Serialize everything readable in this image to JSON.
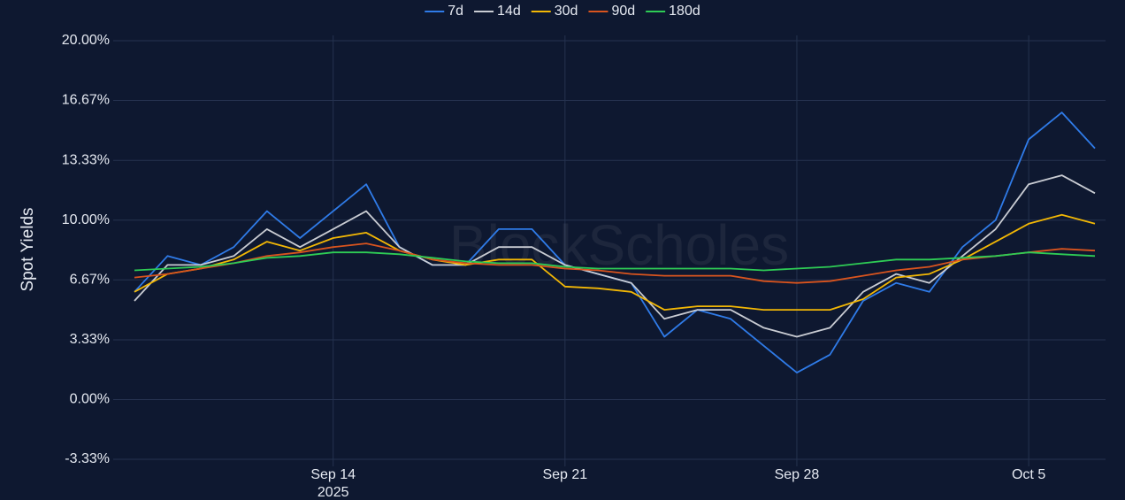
{
  "chart_data": {
    "type": "line",
    "y_label": "Spot Yields",
    "watermark": "BlockScholes",
    "x_year_label": "2025",
    "x": [
      "2025-09-08",
      "2025-09-09",
      "2025-09-10",
      "2025-09-11",
      "2025-09-12",
      "2025-09-13",
      "2025-09-14",
      "2025-09-15",
      "2025-09-16",
      "2025-09-17",
      "2025-09-18",
      "2025-09-19",
      "2025-09-20",
      "2025-09-21",
      "2025-09-22",
      "2025-09-23",
      "2025-09-24",
      "2025-09-25",
      "2025-09-26",
      "2025-09-27",
      "2025-09-28",
      "2025-09-29",
      "2025-09-30",
      "2025-10-01",
      "2025-10-02",
      "2025-10-03",
      "2025-10-04",
      "2025-10-05",
      "2025-10-06",
      "2025-10-07"
    ],
    "xlim": [
      "2025-09-08",
      "2025-10-07"
    ],
    "xticks": [
      {
        "value": "2025-09-14",
        "label": "Sep 14"
      },
      {
        "value": "2025-09-21",
        "label": "Sep 21"
      },
      {
        "value": "2025-09-28",
        "label": "Sep 28"
      },
      {
        "value": "2025-10-05",
        "label": "Oct 5"
      }
    ],
    "ylim": [
      -3.33,
      20
    ],
    "yticks": [
      {
        "value": 20,
        "label": "20.00%"
      },
      {
        "value": 16.67,
        "label": "16.67%"
      },
      {
        "value": 13.33,
        "label": "13.33%"
      },
      {
        "value": 10,
        "label": "10.00%"
      },
      {
        "value": 6.67,
        "label": "6.67%"
      },
      {
        "value": 3.33,
        "label": "3.33%"
      },
      {
        "value": 0,
        "label": "0.00%"
      },
      {
        "value": -3.33,
        "label": "-3.33%"
      }
    ],
    "grid": true,
    "legend": "top",
    "series": [
      {
        "name": "7d",
        "color": "#2f7be8",
        "values": [
          6,
          8,
          7.5,
          8.5,
          10.5,
          9,
          10.5,
          12,
          8.5,
          7.5,
          7.5,
          9.5,
          9.5,
          7.5,
          7,
          6.5,
          3.5,
          5,
          4.5,
          3,
          1.5,
          2.5,
          5.5,
          6.5,
          6,
          8.5,
          10,
          14.5,
          16,
          14
        ]
      },
      {
        "name": "14d",
        "color": "#c9ccd3",
        "values": [
          5.5,
          7.5,
          7.5,
          8,
          9.5,
          8.5,
          9.5,
          10.5,
          8.5,
          7.5,
          7.5,
          8.5,
          8.5,
          7.5,
          7,
          6.5,
          4.5,
          5,
          5,
          4,
          3.5,
          4,
          6,
          7,
          6.5,
          8,
          9.5,
          12,
          12.5,
          11.5
        ]
      },
      {
        "name": "30d",
        "color": "#f2b705",
        "values": [
          6,
          7,
          7.3,
          7.8,
          8.8,
          8.3,
          9,
          9.3,
          8.3,
          7.8,
          7.5,
          7.8,
          7.8,
          6.3,
          6.2,
          6,
          5,
          5.2,
          5.2,
          5,
          5,
          5,
          5.6,
          6.8,
          7,
          7.8,
          8.8,
          9.8,
          10.3,
          9.8
        ]
      },
      {
        "name": "90d",
        "color": "#d9541e",
        "values": [
          6.8,
          7,
          7.3,
          7.6,
          8,
          8.2,
          8.5,
          8.7,
          8.3,
          7.8,
          7.6,
          7.5,
          7.5,
          7.3,
          7.2,
          7,
          6.9,
          6.9,
          6.9,
          6.6,
          6.5,
          6.6,
          6.9,
          7.2,
          7.4,
          7.8,
          8,
          8.2,
          8.4,
          8.3
        ]
      },
      {
        "name": "180d",
        "color": "#2ecc55",
        "values": [
          7.2,
          7.3,
          7.4,
          7.6,
          7.9,
          8,
          8.2,
          8.2,
          8.1,
          7.9,
          7.7,
          7.6,
          7.6,
          7.4,
          7.3,
          7.3,
          7.3,
          7.3,
          7.3,
          7.2,
          7.3,
          7.4,
          7.6,
          7.8,
          7.8,
          7.9,
          8,
          8.2,
          8.1,
          8.0
        ]
      }
    ]
  }
}
